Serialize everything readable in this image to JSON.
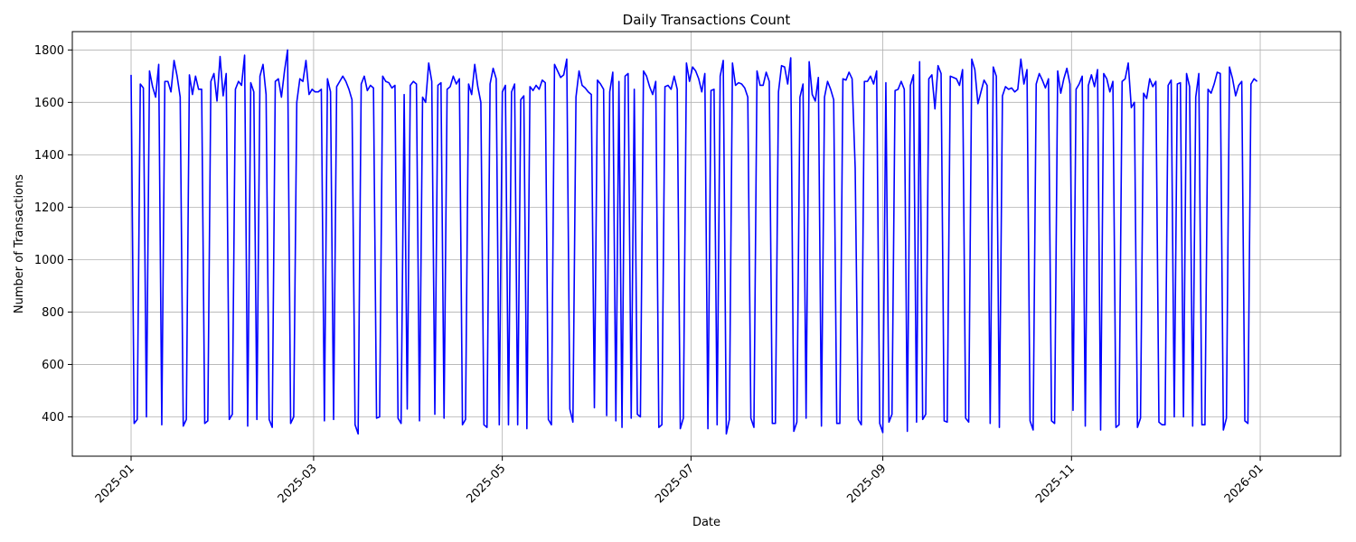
{
  "chart_data": {
    "type": "line",
    "title": "Daily Transactions Count",
    "xlabel": "Date",
    "ylabel": "Number of Transactions",
    "xlim": [
      "2024-12-13",
      "2026-01-27"
    ],
    "ylim": [
      250,
      1870
    ],
    "grid": true,
    "x_ticks": [
      "2025-01",
      "2025-03",
      "2025-05",
      "2025-07",
      "2025-09",
      "2025-11",
      "2026-01"
    ],
    "x_tick_dates": [
      "2025-01-01",
      "2025-03-01",
      "2025-05-01",
      "2025-07-01",
      "2025-09-01",
      "2025-11-01",
      "2026-01-01"
    ],
    "y_ticks": [
      400,
      600,
      800,
      1000,
      1200,
      1400,
      1600,
      1800
    ],
    "series": [
      {
        "color": "#0000ff",
        "x_start": "2025-01-01",
        "x_end": "2025-12-31",
        "values": [
          1705,
          375,
          390,
          1670,
          1655,
          400,
          1720,
          1660,
          1620,
          1745,
          370,
          1680,
          1680,
          1640,
          1760,
          1700,
          1620,
          365,
          390,
          1705,
          1630,
          1700,
          1650,
          1650,
          375,
          385,
          1680,
          1710,
          1605,
          1775,
          1625,
          1710,
          390,
          410,
          1650,
          1680,
          1665,
          1780,
          365,
          1675,
          1640,
          390,
          1700,
          1745,
          1630,
          390,
          360,
          1680,
          1690,
          1620,
          1720,
          1800,
          375,
          400,
          1600,
          1690,
          1680,
          1760,
          1630,
          1650,
          1640,
          1640,
          1650,
          385,
          1690,
          1640,
          390,
          1660,
          1680,
          1700,
          1680,
          1650,
          1610,
          370,
          335,
          1670,
          1700,
          1645,
          1665,
          1655,
          395,
          400,
          1700,
          1680,
          1675,
          1655,
          1665,
          395,
          375,
          1630,
          430,
          1665,
          1680,
          1670,
          385,
          1620,
          1600,
          1750,
          1680,
          410,
          1665,
          1675,
          395,
          1650,
          1660,
          1700,
          1670,
          1690,
          370,
          390,
          1670,
          1630,
          1745,
          1660,
          1600,
          370,
          360,
          1670,
          1730,
          1690,
          370,
          1640,
          1665,
          370,
          1640,
          1670,
          370,
          1610,
          1625,
          355,
          1660,
          1645,
          1665,
          1650,
          1685,
          1675,
          390,
          370,
          1745,
          1720,
          1695,
          1705,
          1765,
          430,
          380,
          1620,
          1720,
          1665,
          1655,
          1640,
          1630,
          435,
          1685,
          1670,
          1650,
          405,
          1640,
          1715,
          385,
          1680,
          360,
          1700,
          1710,
          395,
          1650,
          410,
          400,
          1720,
          1700,
          1660,
          1630,
          1680,
          360,
          370,
          1660,
          1665,
          1650,
          1700,
          1650,
          355,
          395,
          1750,
          1680,
          1735,
          1720,
          1690,
          1640,
          1710,
          355,
          1645,
          1650,
          370,
          1700,
          1760,
          335,
          390,
          1750,
          1665,
          1675,
          1670,
          1655,
          1620,
          395,
          360,
          1720,
          1665,
          1665,
          1715,
          1680,
          375,
          375,
          1640,
          1740,
          1735,
          1670,
          1770,
          345,
          380,
          1620,
          1670,
          395,
          1755,
          1630,
          1605,
          1695,
          365,
          1620,
          1680,
          1650,
          1610,
          375,
          375,
          1690,
          1685,
          1715,
          1690,
          1350,
          390,
          370,
          1680,
          1680,
          1700,
          1670,
          1720,
          375,
          340,
          1675,
          380,
          410,
          1645,
          1650,
          1680,
          1650,
          345,
          1665,
          1705,
          380,
          1755,
          390,
          410,
          1690,
          1705,
          1575,
          1740,
          1710,
          385,
          380,
          1700,
          1695,
          1690,
          1665,
          1725,
          395,
          380,
          1765,
          1725,
          1595,
          1640,
          1685,
          1665,
          375,
          1735,
          1700,
          360,
          1625,
          1660,
          1650,
          1655,
          1640,
          1650,
          1765,
          1670,
          1725,
          385,
          350,
          1670,
          1710,
          1685,
          1655,
          1690,
          385,
          375,
          1720,
          1635,
          1690,
          1730,
          1670,
          425,
          1650,
          1670,
          1700,
          365,
          1665,
          1705,
          1660,
          1725,
          350,
          1710,
          1690,
          1640,
          1680,
          360,
          370,
          1680,
          1690,
          1750,
          1580,
          1600,
          360,
          395,
          1635,
          1615,
          1690,
          1660,
          1680,
          380,
          370,
          370,
          1665,
          1685,
          400,
          1670,
          1675,
          400,
          1710,
          1660,
          365,
          1620,
          1710,
          370,
          370,
          1650,
          1635,
          1670,
          1715,
          1710,
          350,
          395,
          1735,
          1690,
          1625,
          1665,
          1680,
          385,
          375,
          1670,
          1690,
          1680
        ]
      }
    ]
  }
}
